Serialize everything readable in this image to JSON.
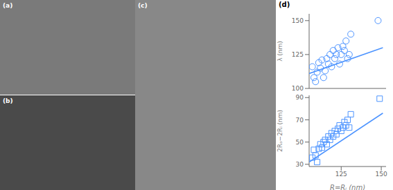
{
  "chart_data": [
    {
      "type": "image",
      "title": "(a)",
      "color": "#7a7a7a"
    },
    {
      "type": "image",
      "title": "(b)",
      "color": "#4a4a4a"
    },
    {
      "type": "image",
      "title": "(c)",
      "color": "#888888"
    },
    {
      "type": "scatter",
      "title": "(d)",
      "ylabel": "λ   (nm)",
      "xlim": [
        105,
        153
      ],
      "xticks": [],
      "ylim": [
        100,
        155
      ],
      "yticks": [
        100,
        125,
        150
      ],
      "tick_labels": "y",
      "series": [
        {
          "type": "scatter",
          "marker": "circle",
          "color": "#4d94ff",
          "x": [
            107,
            108,
            109,
            110,
            111,
            112,
            113,
            114,
            115,
            116,
            117,
            118,
            119,
            120,
            121,
            122,
            123,
            124,
            125,
            126,
            127,
            128,
            129,
            130,
            131,
            148
          ],
          "values": [
            116,
            108,
            105,
            112,
            119,
            115,
            121,
            108,
            113,
            122,
            118,
            125,
            116,
            128,
            122,
            125,
            130,
            118,
            125,
            131,
            128,
            135,
            122,
            125,
            140,
            150
          ]
        },
        {
          "type": "line",
          "color": "#4d94ff",
          "x": [
            105,
            151
          ],
          "values": [
            111,
            130
          ]
        }
      ]
    },
    {
      "type": "scatter",
      "xlabel": "R=Rᵢ  (nm)",
      "ylabel": "2Rₒ−2Rᵢ  (nm)",
      "xlim": [
        105,
        153
      ],
      "xticks": [
        125,
        150
      ],
      "ylim": [
        28,
        92
      ],
      "yticks": [
        30,
        50,
        70,
        90
      ],
      "series": [
        {
          "type": "scatter",
          "marker": "square",
          "color": "#4d94ff",
          "x": [
            107,
            108,
            109,
            110,
            111,
            112,
            113,
            114,
            115,
            116,
            117,
            118,
            119,
            120,
            121,
            122,
            123,
            124,
            125,
            126,
            127,
            128,
            129,
            130,
            131,
            149
          ],
          "values": [
            36,
            43,
            38,
            32,
            44,
            48,
            45,
            50,
            52,
            48,
            55,
            52,
            58,
            55,
            60,
            57,
            62,
            65,
            60,
            63,
            68,
            65,
            70,
            63,
            75,
            89
          ]
        },
        {
          "type": "line",
          "color": "#4d94ff",
          "x": [
            105,
            151
          ],
          "values": [
            32,
            76
          ]
        }
      ]
    }
  ]
}
